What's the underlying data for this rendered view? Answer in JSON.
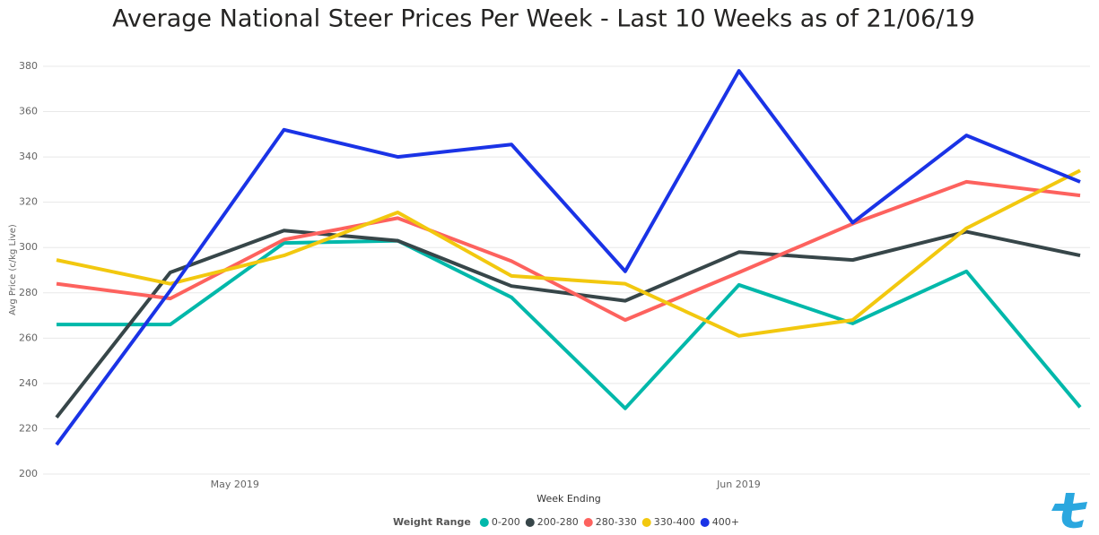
{
  "chart_data": {
    "type": "line",
    "title": "Average National Steer Prices Per Week - Last 10 Weeks as of 21/06/19",
    "x_label": "Week Ending",
    "y_label": "Avg Price (c/kg Live)",
    "legend_title": "Weight Range",
    "legend": "bottom",
    "grid": true,
    "categories": [
      null,
      null,
      null,
      null,
      null,
      null,
      null,
      null,
      null,
      null
    ],
    "xticks": [
      {
        "value": 1.71,
        "label": "May 2019"
      },
      {
        "value": 6.14,
        "label": "Jun 2019"
      }
    ],
    "ylim": [
      200,
      380
    ],
    "yticks": [
      200,
      220,
      240,
      260,
      280,
      300,
      320,
      340,
      360,
      380
    ],
    "series": [
      {
        "name": "0-200",
        "color": "#01B8AA",
        "values": [
          266,
          266,
          302,
          303,
          278,
          229,
          283.5,
          266.5,
          289.5,
          229.5
        ]
      },
      {
        "name": "200-280",
        "color": "#374649",
        "values": [
          225,
          289,
          307.5,
          303,
          283,
          276.5,
          298,
          294.5,
          307,
          296.5
        ]
      },
      {
        "name": "280-330",
        "color": "#FD625E",
        "values": [
          284,
          277.5,
          303.5,
          313,
          294,
          268,
          289,
          310.5,
          329,
          323
        ]
      },
      {
        "name": "330-400",
        "color": "#F2C80F",
        "values": [
          294.5,
          284,
          296.5,
          315.5,
          287.5,
          284,
          261,
          268,
          308.5,
          334
        ]
      },
      {
        "name": "400+",
        "color": "#1A33E6",
        "values": [
          213,
          281,
          352,
          340,
          345.5,
          289.5,
          378,
          311,
          349.5,
          329
        ]
      }
    ]
  }
}
